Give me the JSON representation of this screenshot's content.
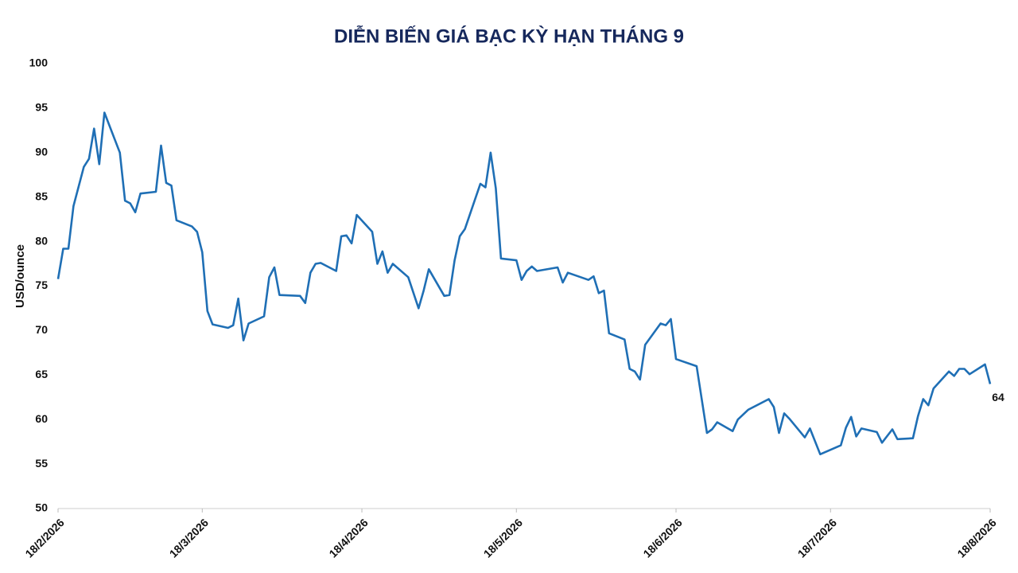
{
  "chart_data": {
    "type": "line",
    "title": "DIỄN BIẾN GIÁ BẠC KỲ HẠN THÁNG 9",
    "y_label": "USD/ounce",
    "color": "#1f6fb5",
    "x": [
      "2026-02-18",
      "2026-02-19",
      "2026-02-20",
      "2026-02-21",
      "2026-02-23",
      "2026-02-24",
      "2026-02-25",
      "2026-02-26",
      "2026-02-27",
      "2026-03-02",
      "2026-03-03",
      "2026-03-04",
      "2026-03-05",
      "2026-03-06",
      "2026-03-09",
      "2026-03-10",
      "2026-03-11",
      "2026-03-12",
      "2026-03-13",
      "2026-03-16",
      "2026-03-17",
      "2026-03-18",
      "2026-03-19",
      "2026-03-20",
      "2026-03-23",
      "2026-03-24",
      "2026-03-25",
      "2026-03-26",
      "2026-03-27",
      "2026-03-30",
      "2026-03-31",
      "2026-04-01",
      "2026-04-02",
      "2026-04-06",
      "2026-04-07",
      "2026-04-08",
      "2026-04-09",
      "2026-04-10",
      "2026-04-13",
      "2026-04-14",
      "2026-04-15",
      "2026-04-16",
      "2026-04-17",
      "2026-04-20",
      "2026-04-21",
      "2026-04-22",
      "2026-04-23",
      "2026-04-24",
      "2026-04-27",
      "2026-04-29",
      "2026-04-30",
      "2026-05-01",
      "2026-05-04",
      "2026-05-05",
      "2026-05-06",
      "2026-05-07",
      "2026-05-08",
      "2026-05-11",
      "2026-05-12",
      "2026-05-13",
      "2026-05-14",
      "2026-05-15",
      "2026-05-18",
      "2026-05-19",
      "2026-05-20",
      "2026-05-21",
      "2026-05-22",
      "2026-05-26",
      "2026-05-27",
      "2026-05-28",
      "2026-06-01",
      "2026-06-02",
      "2026-06-03",
      "2026-06-04",
      "2026-06-05",
      "2026-06-08",
      "2026-06-09",
      "2026-06-10",
      "2026-06-11",
      "2026-06-12",
      "2026-06-15",
      "2026-06-16",
      "2026-06-17",
      "2026-06-18",
      "2026-06-22",
      "2026-06-24",
      "2026-06-25",
      "2026-06-26",
      "2026-06-29",
      "2026-06-30",
      "2026-07-02",
      "2026-07-06",
      "2026-07-07",
      "2026-07-08",
      "2026-07-09",
      "2026-07-10",
      "2026-07-13",
      "2026-07-14",
      "2026-07-16",
      "2026-07-20",
      "2026-07-21",
      "2026-07-22",
      "2026-07-23",
      "2026-07-24",
      "2026-07-27",
      "2026-07-28",
      "2026-07-30",
      "2026-07-31",
      "2026-08-03",
      "2026-08-04",
      "2026-08-05",
      "2026-08-06",
      "2026-08-07",
      "2026-08-10",
      "2026-08-11",
      "2026-08-12",
      "2026-08-13",
      "2026-08-14",
      "2026-08-17",
      "2026-08-18"
    ],
    "values": [
      75.8,
      79.2,
      79.2,
      84.0,
      88.4,
      89.3,
      92.7,
      88.7,
      94.5,
      90.0,
      84.6,
      84.3,
      83.3,
      85.4,
      85.6,
      90.8,
      86.6,
      86.3,
      82.4,
      81.7,
      81.1,
      78.8,
      72.2,
      70.7,
      70.3,
      70.6,
      73.6,
      68.9,
      70.8,
      71.6,
      76.0,
      77.1,
      74.0,
      73.9,
      73.1,
      76.5,
      77.5,
      77.6,
      76.7,
      80.6,
      80.7,
      79.8,
      83.0,
      81.1,
      77.5,
      78.9,
      76.5,
      77.5,
      76.0,
      72.5,
      74.5,
      76.9,
      73.9,
      74.0,
      77.9,
      80.6,
      81.4,
      86.5,
      86.1,
      90.0,
      86.0,
      78.1,
      77.9,
      75.7,
      76.7,
      77.2,
      76.7,
      77.1,
      75.4,
      76.5,
      75.7,
      76.1,
      74.2,
      74.5,
      69.7,
      69.0,
      65.7,
      65.4,
      64.5,
      68.4,
      70.8,
      70.6,
      71.3,
      66.8,
      66.0,
      58.5,
      58.9,
      59.7,
      58.7,
      60.0,
      61.1,
      62.3,
      61.4,
      58.5,
      60.7,
      60.1,
      58.0,
      59.0,
      56.1,
      57.1,
      59.1,
      60.3,
      58.1,
      59.0,
      58.6,
      57.4,
      58.9,
      57.8,
      57.9,
      60.4,
      62.3,
      61.6,
      63.5,
      65.4,
      64.9,
      65.7,
      65.7,
      65.1,
      66.2,
      64
    ],
    "label_last": true,
    "xlim": [
      "2026-02-18",
      "2026-08-18"
    ],
    "xticks": [
      {
        "value": "2026-02-18",
        "label": "18/2/2026"
      },
      {
        "value": "2026-03-18",
        "label": "18/3/2026"
      },
      {
        "value": "2026-04-18",
        "label": "18/4/2026"
      },
      {
        "value": "2026-05-18",
        "label": "18/5/2026"
      },
      {
        "value": "2026-06-18",
        "label": "18/6/2026"
      },
      {
        "value": "2026-07-18",
        "label": "18/7/2026"
      },
      {
        "value": "2026-08-18",
        "label": "18/8/2026"
      }
    ],
    "ylim": [
      50,
      100
    ],
    "yticks": [
      50,
      55,
      60,
      65,
      70,
      75,
      80,
      85,
      90,
      95,
      100
    ],
    "grid": false
  }
}
